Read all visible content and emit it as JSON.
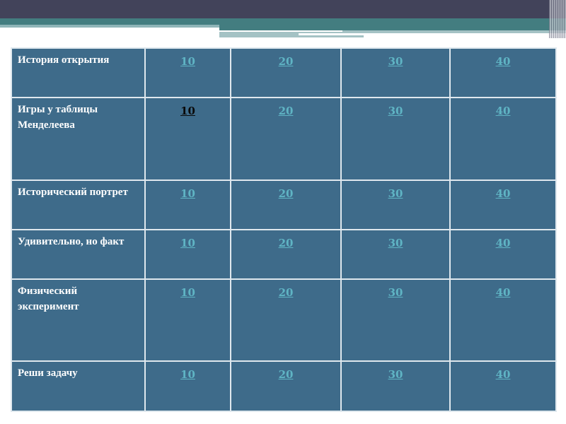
{
  "colors": {
    "cell": "#3e6b8a",
    "link": "#5fb4c4",
    "visited_link": "#0a0a0a",
    "header_bar": "#42435a",
    "accent": "#437d80"
  },
  "rows": [
    {
      "category": "История открытия",
      "points": [
        "10",
        "20",
        "30",
        "40"
      ],
      "visited": [
        false,
        false,
        false,
        false
      ]
    },
    {
      "category": "Игры у таблицы Менделеева",
      "points": [
        "10",
        "20",
        "30",
        "40"
      ],
      "visited": [
        true,
        false,
        false,
        false
      ]
    },
    {
      "category": "Исторический портрет",
      "points": [
        "10",
        "20",
        "30",
        "40"
      ],
      "visited": [
        false,
        false,
        false,
        false
      ]
    },
    {
      "category": "Удивительно, но факт",
      "points": [
        "10",
        "20",
        "30",
        "40"
      ],
      "visited": [
        false,
        false,
        false,
        false
      ]
    },
    {
      "category": "Физический эксперимент",
      "points": [
        "10",
        "20",
        "30",
        "40"
      ],
      "visited": [
        false,
        false,
        false,
        false
      ]
    },
    {
      "category": "Реши задачу",
      "points": [
        "10",
        "20",
        "30",
        "40"
      ],
      "visited": [
        false,
        false,
        false,
        false
      ]
    }
  ]
}
